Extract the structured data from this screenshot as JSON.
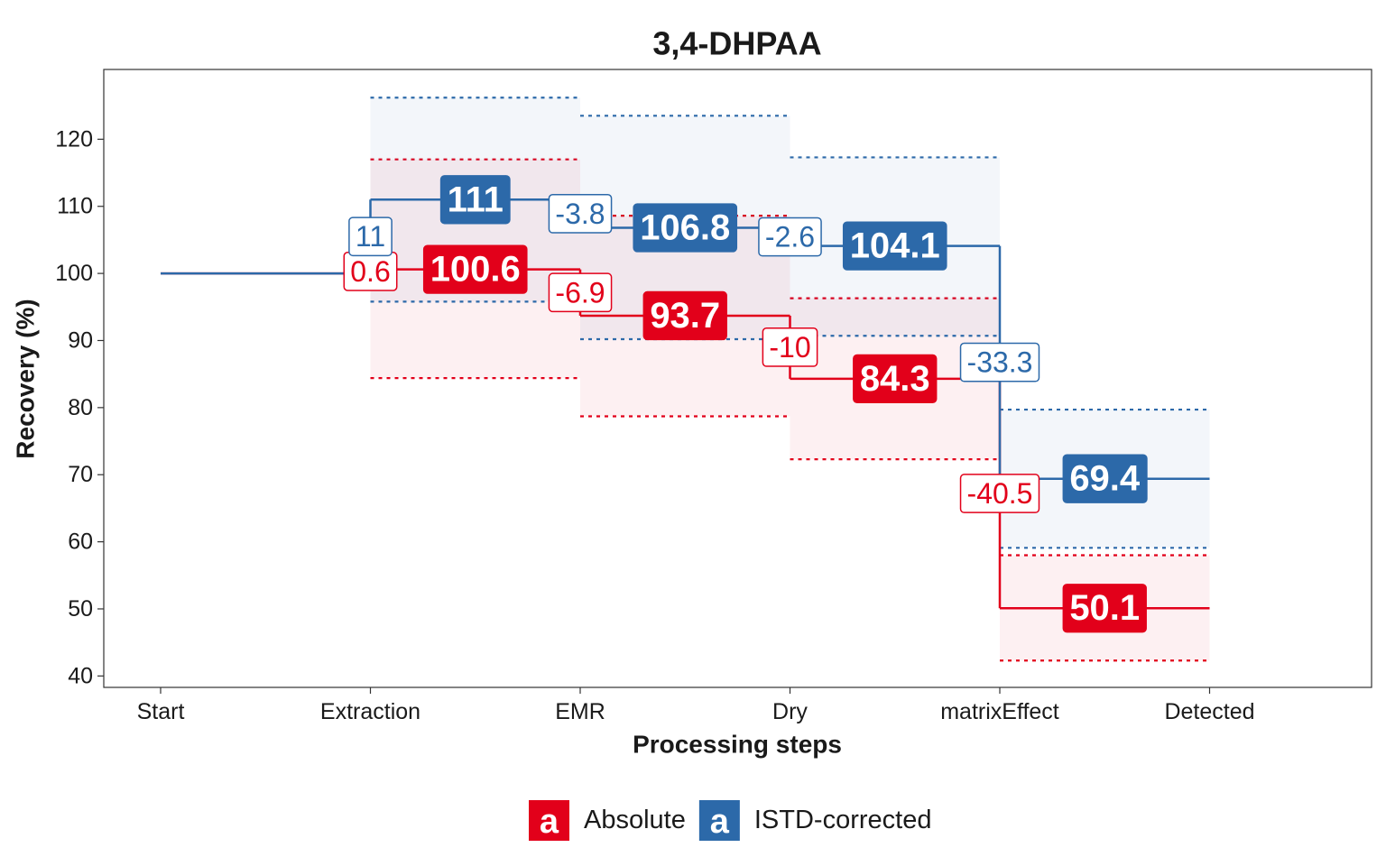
{
  "chart_data": {
    "type": "step",
    "title": "3,4-DHPAA",
    "x_label": "Processing steps",
    "y_label": "Recovery (%)",
    "categories": [
      "Start",
      "Extraction",
      "EMR",
      "Dry",
      "matrixEffect",
      "Detected"
    ],
    "ylim": [
      38.3,
      130.4
    ],
    "yticks": [
      40,
      50,
      60,
      70,
      80,
      90,
      100,
      110,
      120
    ],
    "legend_position": "bottom",
    "legend_key_glyph": "a",
    "series": [
      {
        "name": "Absolute",
        "color": "#e2001a",
        "values": [
          100,
          100.6,
          93.7,
          84.3,
          50.1,
          null
        ],
        "changes": [
          null,
          0.6,
          -6.9,
          -10,
          -40.5,
          null
        ],
        "upper": [
          null,
          117,
          108.6,
          96.3,
          58,
          null
        ],
        "lower": [
          null,
          84.4,
          78.7,
          72.3,
          42.3,
          null
        ]
      },
      {
        "name": "ISTD-corrected",
        "color": "#2c69a9",
        "values": [
          100,
          111,
          106.8,
          104.1,
          69.4,
          null
        ],
        "changes": [
          null,
          11,
          -3.8,
          -2.6,
          -33.3,
          null
        ],
        "upper": [
          null,
          126.2,
          123.5,
          117.3,
          79.7,
          null
        ],
        "lower": [
          null,
          95.8,
          90.2,
          90.7,
          59.1,
          null
        ]
      }
    ]
  }
}
